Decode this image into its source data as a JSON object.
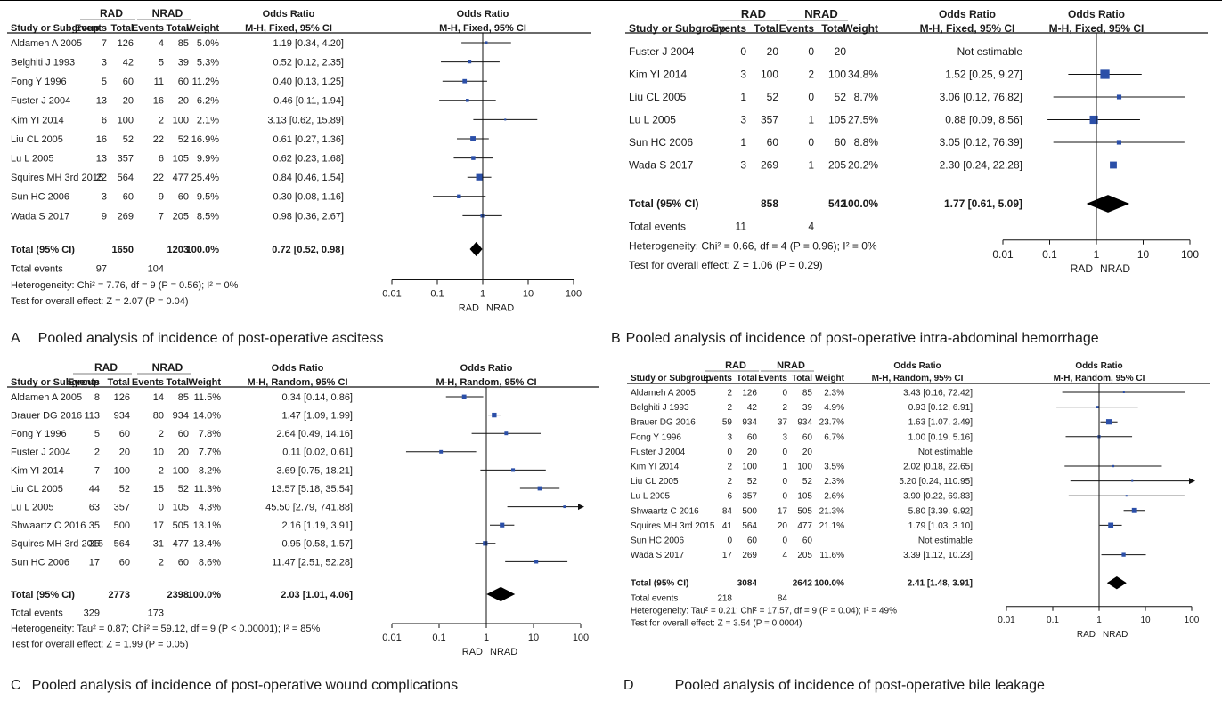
{
  "panels": [
    {
      "id": "A",
      "letter": "A",
      "caption": "Pooled analysis of incidence of post-operative ascitess",
      "header": {
        "group1": "RAD",
        "group2": "NRAD",
        "or_top": "Odds Ratio",
        "or_method": "M-H, Fixed, 95% CI",
        "col_study": "Study or Subgroup",
        "col_events": "Events",
        "col_total": "Total",
        "col_weight": "Weight",
        "plot_top": "Odds Ratio",
        "plot_method": "M-H, Fixed, 95% CI"
      },
      "studies": [
        {
          "name": "Aldameh A 2005",
          "e1": "7",
          "t1": "126",
          "e2": "4",
          "t2": "85",
          "w": "5.0%",
          "ci": "1.19 [0.34, 4.20]",
          "or": 1.19,
          "lo": 0.34,
          "hi": 4.2
        },
        {
          "name": "Belghiti J 1993",
          "e1": "3",
          "t1": "42",
          "e2": "5",
          "t2": "39",
          "w": "5.3%",
          "ci": "0.52 [0.12, 2.35]",
          "or": 0.52,
          "lo": 0.12,
          "hi": 2.35
        },
        {
          "name": "Fong Y 1996",
          "e1": "5",
          "t1": "60",
          "e2": "11",
          "t2": "60",
          "w": "11.2%",
          "ci": "0.40 [0.13, 1.25]",
          "or": 0.4,
          "lo": 0.13,
          "hi": 1.25
        },
        {
          "name": "Fuster J 2004",
          "e1": "13",
          "t1": "20",
          "e2": "16",
          "t2": "20",
          "w": "6.2%",
          "ci": "0.46 [0.11, 1.94]",
          "or": 0.46,
          "lo": 0.11,
          "hi": 1.94
        },
        {
          "name": "Kim YI 2014",
          "e1": "6",
          "t1": "100",
          "e2": "2",
          "t2": "100",
          "w": "2.1%",
          "ci": "3.13 [0.62, 15.89]",
          "or": 3.13,
          "lo": 0.62,
          "hi": 15.89
        },
        {
          "name": "Liu CL 2005",
          "e1": "16",
          "t1": "52",
          "e2": "22",
          "t2": "52",
          "w": "16.9%",
          "ci": "0.61 [0.27, 1.36]",
          "or": 0.61,
          "lo": 0.27,
          "hi": 1.36
        },
        {
          "name": "Lu L 2005",
          "e1": "13",
          "t1": "357",
          "e2": "6",
          "t2": "105",
          "w": "9.9%",
          "ci": "0.62 [0.23, 1.68]",
          "or": 0.62,
          "lo": 0.23,
          "hi": 1.68
        },
        {
          "name": "Squires MH 3rd 2015",
          "e1": "22",
          "t1": "564",
          "e2": "22",
          "t2": "477",
          "w": "25.4%",
          "ci": "0.84 [0.46, 1.54]",
          "or": 0.84,
          "lo": 0.46,
          "hi": 1.54
        },
        {
          "name": "Sun HC 2006",
          "e1": "3",
          "t1": "60",
          "e2": "9",
          "t2": "60",
          "w": "9.5%",
          "ci": "0.30 [0.08, 1.16]",
          "or": 0.3,
          "lo": 0.08,
          "hi": 1.16
        },
        {
          "name": "Wada S 2017",
          "e1": "9",
          "t1": "269",
          "e2": "7",
          "t2": "205",
          "w": "8.5%",
          "ci": "0.98 [0.36, 2.67]",
          "or": 0.98,
          "lo": 0.36,
          "hi": 2.67
        }
      ],
      "total": {
        "label": "Total (95% CI)",
        "t1": "1650",
        "t2": "1203",
        "w": "100.0%",
        "ci": "0.72 [0.52, 0.98]",
        "or": 0.72,
        "lo": 0.52,
        "hi": 0.98
      },
      "total_events": {
        "label": "Total events",
        "e1": "97",
        "e2": "104"
      },
      "heterogeneity": "Heterogeneity: Chi² = 7.76, df = 9 (P = 0.56); I² = 0%",
      "overall_test": "Test for overall effect: Z = 2.07 (P = 0.04)",
      "axis": {
        "ticks": [
          "0.01",
          "0.1",
          "1",
          "10",
          "100"
        ],
        "left_label": "RAD",
        "right_label": "NRAD"
      }
    },
    {
      "id": "B",
      "letter": "B",
      "caption": "Pooled analysis of incidence of post-operative intra-abdominal hemorrhage",
      "header": {
        "group1": "RAD",
        "group2": "NRAD",
        "or_top": "Odds Ratio",
        "or_method": "M-H, Fixed, 95% CI",
        "col_study": "Study or Subgroup",
        "col_events": "Events",
        "col_total": "Total",
        "col_weight": "Weight",
        "plot_top": "Odds Ratio",
        "plot_method": "M-H, Fixed, 95% CI"
      },
      "studies": [
        {
          "name": "Fuster J 2004",
          "e1": "0",
          "t1": "20",
          "e2": "0",
          "t2": "20",
          "w": "",
          "ci": "Not estimable",
          "or": null,
          "lo": null,
          "hi": null
        },
        {
          "name": "Kim YI 2014",
          "e1": "3",
          "t1": "100",
          "e2": "2",
          "t2": "100",
          "w": "34.8%",
          "ci": "1.52 [0.25, 9.27]",
          "or": 1.52,
          "lo": 0.25,
          "hi": 9.27
        },
        {
          "name": "Liu CL 2005",
          "e1": "1",
          "t1": "52",
          "e2": "0",
          "t2": "52",
          "w": "8.7%",
          "ci": "3.06 [0.12, 76.82]",
          "or": 3.06,
          "lo": 0.12,
          "hi": 76.82
        },
        {
          "name": "Lu L 2005",
          "e1": "3",
          "t1": "357",
          "e2": "1",
          "t2": "105",
          "w": "27.5%",
          "ci": "0.88 [0.09, 8.56]",
          "or": 0.88,
          "lo": 0.09,
          "hi": 8.56
        },
        {
          "name": "Sun HC 2006",
          "e1": "1",
          "t1": "60",
          "e2": "0",
          "t2": "60",
          "w": "8.8%",
          "ci": "3.05 [0.12, 76.39]",
          "or": 3.05,
          "lo": 0.12,
          "hi": 76.39
        },
        {
          "name": "Wada S 2017",
          "e1": "3",
          "t1": "269",
          "e2": "1",
          "t2": "205",
          "w": "20.2%",
          "ci": "2.30 [0.24, 22.28]",
          "or": 2.3,
          "lo": 0.24,
          "hi": 22.28
        }
      ],
      "total": {
        "label": "Total (95% CI)",
        "t1": "858",
        "t2": "542",
        "w": "100.0%",
        "ci": "1.77 [0.61, 5.09]",
        "or": 1.77,
        "lo": 0.61,
        "hi": 5.09
      },
      "total_events": {
        "label": "Total events",
        "e1": "11",
        "e2": "4"
      },
      "heterogeneity": "Heterogeneity: Chi² = 0.66, df = 4 (P = 0.96); I² = 0%",
      "overall_test": "Test for overall effect: Z = 1.06 (P = 0.29)",
      "axis": {
        "ticks": [
          "0.01",
          "0.1",
          "1",
          "10",
          "100"
        ],
        "left_label": "RAD",
        "right_label": "NRAD"
      }
    },
    {
      "id": "C",
      "letter": "C",
      "caption": "Pooled analysis of incidence of post-operative wound complications",
      "header": {
        "group1": "RAD",
        "group2": "NRAD",
        "or_top": "Odds Ratio",
        "or_method": "M-H, Random, 95% CI",
        "col_study": "Study or Subgroup",
        "col_events": "Events",
        "col_total": "Total",
        "col_weight": "Weight",
        "plot_top": "Odds Ratio",
        "plot_method": "M-H, Random, 95% CI"
      },
      "studies": [
        {
          "name": "Aldameh A 2005",
          "e1": "8",
          "t1": "126",
          "e2": "14",
          "t2": "85",
          "w": "11.5%",
          "ci": "0.34 [0.14, 0.86]",
          "or": 0.34,
          "lo": 0.14,
          "hi": 0.86
        },
        {
          "name": "Brauer DG 2016",
          "e1": "113",
          "t1": "934",
          "e2": "80",
          "t2": "934",
          "w": "14.0%",
          "ci": "1.47 [1.09, 1.99]",
          "or": 1.47,
          "lo": 1.09,
          "hi": 1.99
        },
        {
          "name": "Fong Y 1996",
          "e1": "5",
          "t1": "60",
          "e2": "2",
          "t2": "60",
          "w": "7.8%",
          "ci": "2.64 [0.49, 14.16]",
          "or": 2.64,
          "lo": 0.49,
          "hi": 14.16
        },
        {
          "name": "Fuster J 2004",
          "e1": "2",
          "t1": "20",
          "e2": "10",
          "t2": "20",
          "w": "7.7%",
          "ci": "0.11 [0.02, 0.61]",
          "or": 0.11,
          "lo": 0.02,
          "hi": 0.61
        },
        {
          "name": "Kim YI 2014",
          "e1": "7",
          "t1": "100",
          "e2": "2",
          "t2": "100",
          "w": "8.2%",
          "ci": "3.69 [0.75, 18.21]",
          "or": 3.69,
          "lo": 0.75,
          "hi": 18.21
        },
        {
          "name": "Liu CL 2005",
          "e1": "44",
          "t1": "52",
          "e2": "15",
          "t2": "52",
          "w": "11.3%",
          "ci": "13.57 [5.18, 35.54]",
          "or": 13.57,
          "lo": 5.18,
          "hi": 35.54
        },
        {
          "name": "Lu L 2005",
          "e1": "63",
          "t1": "357",
          "e2": "0",
          "t2": "105",
          "w": "4.3%",
          "ci": "45.50 [2.79, 741.88]",
          "or": 45.5,
          "lo": 2.79,
          "hi": 741.88
        },
        {
          "name": "Shwaartz C 2016",
          "e1": "35",
          "t1": "500",
          "e2": "17",
          "t2": "505",
          "w": "13.1%",
          "ci": "2.16 [1.19, 3.91]",
          "or": 2.16,
          "lo": 1.19,
          "hi": 3.91
        },
        {
          "name": "Squires MH 3rd 2015",
          "e1": "35",
          "t1": "564",
          "e2": "31",
          "t2": "477",
          "w": "13.4%",
          "ci": "0.95 [0.58, 1.57]",
          "or": 0.95,
          "lo": 0.58,
          "hi": 1.57
        },
        {
          "name": "Sun HC 2006",
          "e1": "17",
          "t1": "60",
          "e2": "2",
          "t2": "60",
          "w": "8.6%",
          "ci": "11.47 [2.51, 52.28]",
          "or": 11.47,
          "lo": 2.51,
          "hi": 52.28
        }
      ],
      "total": {
        "label": "Total (95% CI)",
        "t1": "2773",
        "t2": "2398",
        "w": "100.0%",
        "ci": "2.03 [1.01, 4.06]",
        "or": 2.03,
        "lo": 1.01,
        "hi": 4.06
      },
      "total_events": {
        "label": "Total events",
        "e1": "329",
        "e2": "173"
      },
      "heterogeneity": "Heterogeneity: Tau² = 0.87; Chi² = 59.12, df = 9 (P < 0.00001); I² = 85%",
      "overall_test": "Test for overall effect: Z = 1.99 (P = 0.05)",
      "axis": {
        "ticks": [
          "0.01",
          "0.1",
          "1",
          "10",
          "100"
        ],
        "left_label": "RAD",
        "right_label": "NRAD"
      }
    },
    {
      "id": "D",
      "letter": "D",
      "caption": "Pooled analysis of incidence of post-operative bile leakage",
      "header": {
        "group1": "RAD",
        "group2": "NRAD",
        "or_top": "Odds Ratio",
        "or_method": "M-H, Random, 95% CI",
        "col_study": "Study or Subgroup",
        "col_events": "Events",
        "col_total": "Total",
        "col_weight": "Weight",
        "plot_top": "Odds Ratio",
        "plot_method": "M-H, Random, 95% CI"
      },
      "studies": [
        {
          "name": "Aldameh A 2005",
          "e1": "2",
          "t1": "126",
          "e2": "0",
          "t2": "85",
          "w": "2.3%",
          "ci": "3.43 [0.16, 72.42]",
          "or": 3.43,
          "lo": 0.16,
          "hi": 72.42
        },
        {
          "name": "Belghiti J 1993",
          "e1": "2",
          "t1": "42",
          "e2": "2",
          "t2": "39",
          "w": "4.9%",
          "ci": "0.93 [0.12, 6.91]",
          "or": 0.93,
          "lo": 0.12,
          "hi": 6.91
        },
        {
          "name": "Brauer DG 2016",
          "e1": "59",
          "t1": "934",
          "e2": "37",
          "t2": "934",
          "w": "23.7%",
          "ci": "1.63 [1.07, 2.49]",
          "or": 1.63,
          "lo": 1.07,
          "hi": 2.49
        },
        {
          "name": "Fong Y 1996",
          "e1": "3",
          "t1": "60",
          "e2": "3",
          "t2": "60",
          "w": "6.7%",
          "ci": "1.00 [0.19, 5.16]",
          "or": 1.0,
          "lo": 0.19,
          "hi": 5.16
        },
        {
          "name": "Fuster J 2004",
          "e1": "0",
          "t1": "20",
          "e2": "0",
          "t2": "20",
          "w": "",
          "ci": "Not estimable",
          "or": null,
          "lo": null,
          "hi": null
        },
        {
          "name": "Kim YI 2014",
          "e1": "2",
          "t1": "100",
          "e2": "1",
          "t2": "100",
          "w": "3.5%",
          "ci": "2.02 [0.18, 22.65]",
          "or": 2.02,
          "lo": 0.18,
          "hi": 22.65
        },
        {
          "name": "Liu CL 2005",
          "e1": "2",
          "t1": "52",
          "e2": "0",
          "t2": "52",
          "w": "2.3%",
          "ci": "5.20 [0.24, 110.95]",
          "or": 5.2,
          "lo": 0.24,
          "hi": 110.95
        },
        {
          "name": "Lu L 2005",
          "e1": "6",
          "t1": "357",
          "e2": "0",
          "t2": "105",
          "w": "2.6%",
          "ci": "3.90 [0.22, 69.83]",
          "or": 3.9,
          "lo": 0.22,
          "hi": 69.83
        },
        {
          "name": "Shwaartz C 2016",
          "e1": "84",
          "t1": "500",
          "e2": "17",
          "t2": "505",
          "w": "21.3%",
          "ci": "5.80 [3.39, 9.92]",
          "or": 5.8,
          "lo": 3.39,
          "hi": 9.92
        },
        {
          "name": "Squires MH 3rd 2015",
          "e1": "41",
          "t1": "564",
          "e2": "20",
          "t2": "477",
          "w": "21.1%",
          "ci": "1.79 [1.03, 3.10]",
          "or": 1.79,
          "lo": 1.03,
          "hi": 3.1
        },
        {
          "name": "Sun HC 2006",
          "e1": "0",
          "t1": "60",
          "e2": "0",
          "t2": "60",
          "w": "",
          "ci": "Not estimable",
          "or": null,
          "lo": null,
          "hi": null
        },
        {
          "name": "Wada S 2017",
          "e1": "17",
          "t1": "269",
          "e2": "4",
          "t2": "205",
          "w": "11.6%",
          "ci": "3.39 [1.12, 10.23]",
          "or": 3.39,
          "lo": 1.12,
          "hi": 10.23
        }
      ],
      "total": {
        "label": "Total (95% CI)",
        "t1": "3084",
        "t2": "2642",
        "w": "100.0%",
        "ci": "2.41 [1.48, 3.91]",
        "or": 2.41,
        "lo": 1.48,
        "hi": 3.91
      },
      "total_events": {
        "label": "Total events",
        "e1": "218",
        "e2": "84"
      },
      "heterogeneity": "Heterogeneity: Tau² = 0.21; Chi² = 17.57, df = 9 (P = 0.04); I² = 49%",
      "overall_test": "Test for overall effect: Z = 3.54 (P = 0.0004)",
      "axis": {
        "ticks": [
          "0.01",
          "0.1",
          "1",
          "10",
          "100"
        ],
        "left_label": "RAD",
        "right_label": "NRAD"
      }
    }
  ],
  "chart_data": [
    {
      "type": "forest",
      "panel": "A",
      "scale": "log",
      "xlim": [
        0.01,
        100
      ],
      "categories": [
        "Aldameh A 2005",
        "Belghiti J 1993",
        "Fong Y 1996",
        "Fuster J 2004",
        "Kim YI 2014",
        "Liu CL 2005",
        "Lu L 2005",
        "Squires MH 3rd 2015",
        "Sun HC 2006",
        "Wada S 2017"
      ],
      "or": [
        1.19,
        0.52,
        0.4,
        0.46,
        3.13,
        0.61,
        0.62,
        0.84,
        0.3,
        0.98
      ],
      "lower": [
        0.34,
        0.12,
        0.13,
        0.11,
        0.62,
        0.27,
        0.23,
        0.46,
        0.08,
        0.36
      ],
      "upper": [
        4.2,
        2.35,
        1.25,
        1.94,
        15.89,
        1.36,
        1.68,
        1.54,
        1.16,
        2.67
      ],
      "weights": [
        5.0,
        5.3,
        11.2,
        6.2,
        2.1,
        16.9,
        9.9,
        25.4,
        9.5,
        8.5
      ],
      "pooled": {
        "or": 0.72,
        "lower": 0.52,
        "upper": 0.98
      }
    },
    {
      "type": "forest",
      "panel": "B",
      "scale": "log",
      "xlim": [
        0.01,
        100
      ],
      "categories": [
        "Fuster J 2004",
        "Kim YI 2014",
        "Liu CL 2005",
        "Lu L 2005",
        "Sun HC 2006",
        "Wada S 2017"
      ],
      "or": [
        null,
        1.52,
        3.06,
        0.88,
        3.05,
        2.3
      ],
      "lower": [
        null,
        0.25,
        0.12,
        0.09,
        0.12,
        0.24
      ],
      "upper": [
        null,
        9.27,
        76.82,
        8.56,
        76.39,
        22.28
      ],
      "weights": [
        null,
        34.8,
        8.7,
        27.5,
        8.8,
        20.2
      ],
      "pooled": {
        "or": 1.77,
        "lower": 0.61,
        "upper": 5.09
      }
    },
    {
      "type": "forest",
      "panel": "C",
      "scale": "log",
      "xlim": [
        0.01,
        100
      ],
      "categories": [
        "Aldameh A 2005",
        "Brauer DG 2016",
        "Fong Y 1996",
        "Fuster J 2004",
        "Kim YI 2014",
        "Liu CL 2005",
        "Lu L 2005",
        "Shwaartz C 2016",
        "Squires MH 3rd 2015",
        "Sun HC 2006"
      ],
      "or": [
        0.34,
        1.47,
        2.64,
        0.11,
        3.69,
        13.57,
        45.5,
        2.16,
        0.95,
        11.47
      ],
      "lower": [
        0.14,
        1.09,
        0.49,
        0.02,
        0.75,
        5.18,
        2.79,
        1.19,
        0.58,
        2.51
      ],
      "upper": [
        0.86,
        1.99,
        14.16,
        0.61,
        18.21,
        35.54,
        741.88,
        3.91,
        1.57,
        52.28
      ],
      "weights": [
        11.5,
        14.0,
        7.8,
        7.7,
        8.2,
        11.3,
        4.3,
        13.1,
        13.4,
        8.6
      ],
      "pooled": {
        "or": 2.03,
        "lower": 1.01,
        "upper": 4.06
      }
    },
    {
      "type": "forest",
      "panel": "D",
      "scale": "log",
      "xlim": [
        0.01,
        100
      ],
      "categories": [
        "Aldameh A 2005",
        "Belghiti J 1993",
        "Brauer DG 2016",
        "Fong Y 1996",
        "Fuster J 2004",
        "Kim YI 2014",
        "Liu CL 2005",
        "Lu L 2005",
        "Shwaartz C 2016",
        "Squires MH 3rd 2015",
        "Sun HC 2006",
        "Wada S 2017"
      ],
      "or": [
        3.43,
        0.93,
        1.63,
        1.0,
        null,
        2.02,
        5.2,
        3.9,
        5.8,
        1.79,
        null,
        3.39
      ],
      "lower": [
        0.16,
        0.12,
        1.07,
        0.19,
        null,
        0.18,
        0.24,
        0.22,
        3.39,
        1.03,
        null,
        1.12
      ],
      "upper": [
        72.42,
        6.91,
        2.49,
        5.16,
        null,
        22.65,
        110.95,
        69.83,
        9.92,
        3.1,
        null,
        10.23
      ],
      "weights": [
        2.3,
        4.9,
        23.7,
        6.7,
        null,
        3.5,
        2.3,
        2.6,
        21.3,
        21.1,
        null,
        11.6
      ],
      "pooled": {
        "or": 2.41,
        "lower": 1.48,
        "upper": 3.91
      }
    }
  ],
  "colors": {
    "square": "#2b4fa8",
    "line": "#111111",
    "diamond": "#000000"
  }
}
